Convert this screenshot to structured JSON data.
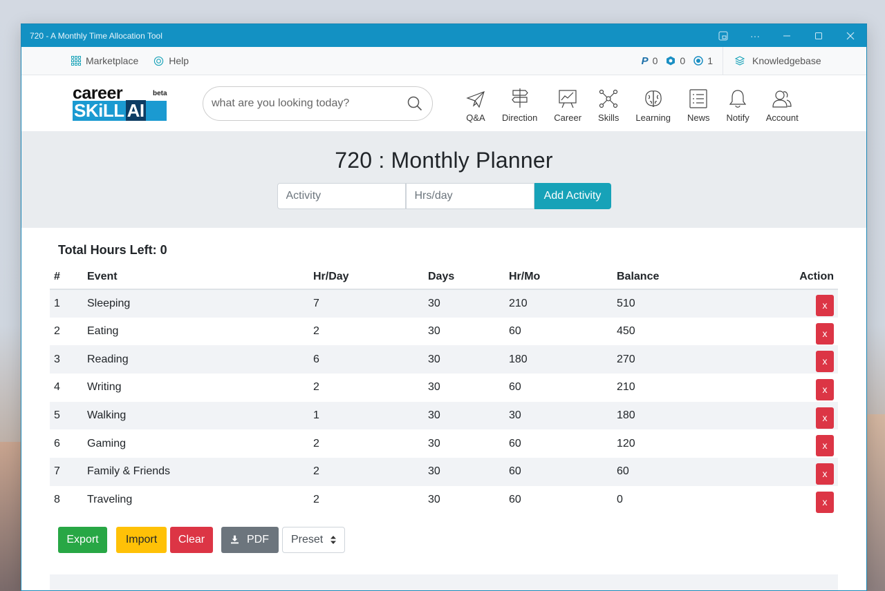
{
  "window": {
    "title": "720 - A Monthly Time Allocation Tool"
  },
  "topbar": {
    "marketplace": "Marketplace",
    "help": "Help",
    "stats": [
      {
        "icon": "paypal-icon",
        "value": "0"
      },
      {
        "icon": "hexagon-icon",
        "value": "0"
      },
      {
        "icon": "target-icon",
        "value": "1"
      }
    ],
    "knowledgebase": "Knowledgebase"
  },
  "logo": {
    "line1": "career",
    "beta": "beta",
    "skill": "SKiLL",
    "ai": "AI"
  },
  "search": {
    "placeholder": "what are you looking today?"
  },
  "nav": [
    {
      "label": "Q&A",
      "icon": "paper-plane-icon"
    },
    {
      "label": "Direction",
      "icon": "signpost-icon"
    },
    {
      "label": "Career",
      "icon": "chart-board-icon"
    },
    {
      "label": "Skills",
      "icon": "network-icon"
    },
    {
      "label": "Learning",
      "icon": "brain-icon"
    },
    {
      "label": "News",
      "icon": "list-icon"
    },
    {
      "label": "Notify",
      "icon": "bell-icon"
    },
    {
      "label": "Account",
      "icon": "users-icon"
    }
  ],
  "hero": {
    "title": "720 : Monthly Planner",
    "activity_placeholder": "Activity",
    "hours_placeholder": "Hrs/day",
    "add_label": "Add Activity"
  },
  "planner": {
    "total_label": "Total Hours Left: 0",
    "headers": {
      "num": "#",
      "event": "Event",
      "hr_day": "Hr/Day",
      "days": "Days",
      "hr_mo": "Hr/Mo",
      "balance": "Balance",
      "action": "Action"
    },
    "rows": [
      {
        "num": "1",
        "event": "Sleeping",
        "hr_day": "7",
        "days": "30",
        "hr_mo": "210",
        "balance": "510",
        "action": "x"
      },
      {
        "num": "2",
        "event": "Eating",
        "hr_day": "2",
        "days": "30",
        "hr_mo": "60",
        "balance": "450",
        "action": "x"
      },
      {
        "num": "3",
        "event": "Reading",
        "hr_day": "6",
        "days": "30",
        "hr_mo": "180",
        "balance": "270",
        "action": "x"
      },
      {
        "num": "4",
        "event": "Writing",
        "hr_day": "2",
        "days": "30",
        "hr_mo": "60",
        "balance": "210",
        "action": "x"
      },
      {
        "num": "5",
        "event": "Walking",
        "hr_day": "1",
        "days": "30",
        "hr_mo": "30",
        "balance": "180",
        "action": "x"
      },
      {
        "num": "6",
        "event": "Gaming",
        "hr_day": "2",
        "days": "30",
        "hr_mo": "60",
        "balance": "120",
        "action": "x"
      },
      {
        "num": "7",
        "event": "Family & Friends",
        "hr_day": "2",
        "days": "30",
        "hr_mo": "60",
        "balance": "60",
        "action": "x"
      },
      {
        "num": "8",
        "event": "Traveling",
        "hr_day": "2",
        "days": "30",
        "hr_mo": "60",
        "balance": "0",
        "action": "x"
      }
    ],
    "buttons": {
      "export": "Export",
      "import": "Import",
      "clear": "Clear",
      "pdf": "PDF",
      "preset": "Preset"
    }
  },
  "colors": {
    "titlebar": "#1391c3",
    "accent": "#17a2b8",
    "danger": "#dc3545",
    "success": "#28a745",
    "warning": "#ffc107",
    "secondary": "#6c757d"
  }
}
